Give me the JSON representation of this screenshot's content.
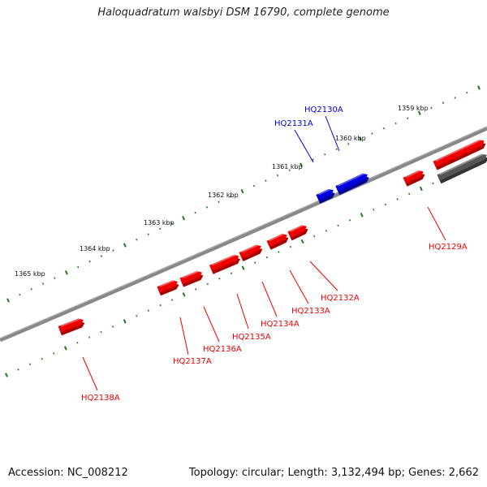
{
  "title": "Haloquadratum walsbyi DSM 16790, complete genome",
  "accession_text": "Accession: NC_008212",
  "topology_text": "Topology: circular; Length: 3,132,494 bp; Genes: 2,662",
  "colors": {
    "forward_gene": "#0000dd",
    "reverse_gene": "#ee0000",
    "backbone": "#888888",
    "other_gene": "#555555",
    "ruler_tick": "#1f7a1f"
  },
  "ruler_labels": [
    "1359 kbp",
    "1360 kbp",
    "1361 kbp",
    "1362 kbp",
    "1363 kbp",
    "1364 kbp",
    "1365 kbp"
  ],
  "genes": [
    {
      "id": "HQ2129A",
      "strand": "reverse"
    },
    {
      "id": "HQ2130A",
      "strand": "forward"
    },
    {
      "id": "HQ2131A",
      "strand": "forward"
    },
    {
      "id": "HQ2132A",
      "strand": "reverse"
    },
    {
      "id": "HQ2133A",
      "strand": "reverse"
    },
    {
      "id": "HQ2134A",
      "strand": "reverse"
    },
    {
      "id": "HQ2135A",
      "strand": "reverse"
    },
    {
      "id": "HQ2136A",
      "strand": "reverse"
    },
    {
      "id": "HQ2137A",
      "strand": "reverse"
    },
    {
      "id": "HQ2138A",
      "strand": "reverse"
    }
  ]
}
